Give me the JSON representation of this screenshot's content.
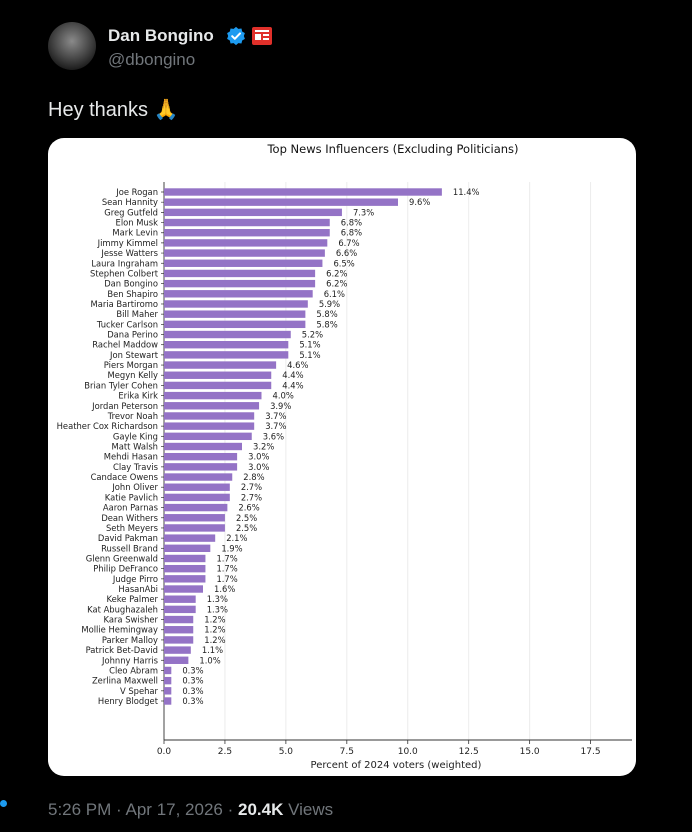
{
  "author": {
    "name": "Dan Bongino",
    "handle": "@dbongino"
  },
  "tweet": {
    "text": "Hey thanks 🙏"
  },
  "meta": {
    "time": "5:26 PM",
    "sep": "·",
    "date": "Apr 17, 2026",
    "views_count": "20.4K",
    "views_label": "Views"
  },
  "colors": {
    "bar": "#9473c6",
    "verified": "#1d9bf0",
    "affiliate_badge": "#e0302a"
  },
  "chart_data": {
    "type": "bar",
    "orientation": "horizontal",
    "title": "Top News Influencers (Excluding Politicians)",
    "xlabel": "Percent of 2024 voters (weighted)",
    "ylabel": "",
    "xlim": [
      0,
      19.2
    ],
    "xticks": [
      "0.0",
      "2.5",
      "5.0",
      "7.5",
      "10.0",
      "12.5",
      "15.0",
      "17.5"
    ],
    "grid": "vertical",
    "categories": [
      "Joe Rogan",
      "Sean Hannity",
      "Greg Gutfeld",
      "Elon Musk",
      "Mark Levin",
      "Jimmy Kimmel",
      "Jesse Watters",
      "Laura Ingraham",
      "Stephen Colbert",
      "Dan Bongino",
      "Ben Shapiro",
      "Maria Bartiromo",
      "Bill Maher",
      "Tucker Carlson",
      "Dana Perino",
      "Rachel Maddow",
      "Jon Stewart",
      "Piers Morgan",
      "Megyn Kelly",
      "Brian Tyler Cohen",
      "Erika Kirk",
      "Jordan Peterson",
      "Trevor Noah",
      "Heather Cox Richardson",
      "Gayle King",
      "Matt Walsh",
      "Mehdi Hasan",
      "Clay Travis",
      "Candace Owens",
      "John Oliver",
      "Katie Pavlich",
      "Aaron Parnas",
      "Dean Withers",
      "Seth Meyers",
      "David Pakman",
      "Russell Brand",
      "Glenn Greenwald",
      "Philip DeFranco",
      "Judge Pirro",
      "HasanAbi",
      "Keke Palmer",
      "Kat Abughazaleh",
      "Kara Swisher",
      "Mollie Hemingway",
      "Parker Malloy",
      "Patrick Bet-David",
      "Johnny Harris",
      "Cleo Abram",
      "Zerlina Maxwell",
      "V Spehar",
      "Henry Blodget"
    ],
    "values": [
      11.4,
      9.6,
      7.3,
      6.8,
      6.8,
      6.7,
      6.6,
      6.5,
      6.2,
      6.2,
      6.1,
      5.9,
      5.8,
      5.8,
      5.2,
      5.1,
      5.1,
      4.6,
      4.4,
      4.4,
      4.0,
      3.9,
      3.7,
      3.7,
      3.6,
      3.2,
      3.0,
      3.0,
      2.8,
      2.7,
      2.7,
      2.6,
      2.5,
      2.5,
      2.1,
      1.9,
      1.7,
      1.7,
      1.7,
      1.6,
      1.3,
      1.3,
      1.2,
      1.2,
      1.2,
      1.1,
      1.0,
      0.3,
      0.3,
      0.3,
      0.3
    ],
    "data_labels": [
      "11.4%",
      "9.6%",
      "7.3%",
      "6.8%",
      "6.8%",
      "6.7%",
      "6.6%",
      "6.5%",
      "6.2%",
      "6.2%",
      "6.1%",
      "5.9%",
      "5.8%",
      "5.8%",
      "5.2%",
      "5.1%",
      "5.1%",
      "4.6%",
      "4.4%",
      "4.4%",
      "4.0%",
      "3.9%",
      "3.7%",
      "3.7%",
      "3.6%",
      "3.2%",
      "3.0%",
      "3.0%",
      "2.8%",
      "2.7%",
      "2.7%",
      "2.6%",
      "2.5%",
      "2.5%",
      "2.1%",
      "1.9%",
      "1.7%",
      "1.7%",
      "1.7%",
      "1.6%",
      "1.3%",
      "1.3%",
      "1.2%",
      "1.2%",
      "1.2%",
      "1.1%",
      "1.0%",
      "0.3%",
      "0.3%",
      "0.3%",
      "0.3%"
    ]
  }
}
